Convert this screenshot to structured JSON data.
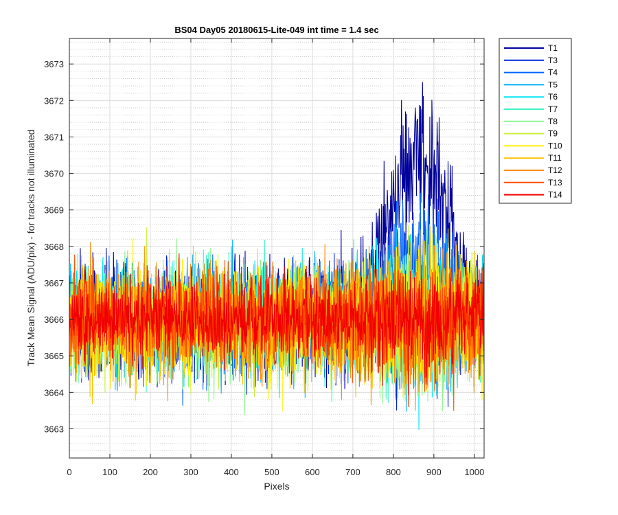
{
  "chart_data": {
    "type": "line",
    "title": "BS04 Day05 20180615-Lite-049 int time = 1.4 sec",
    "xlabel": "Pixels",
    "ylabel": "Track Mean Signal (ADU/pix) - for tracks not illuminated",
    "xlim": [
      0,
      1024
    ],
    "ylim": [
      3662.2,
      3673.7
    ],
    "xticks": [
      0,
      100,
      200,
      300,
      400,
      500,
      600,
      700,
      800,
      900,
      1000
    ],
    "yticks": [
      3663,
      3664,
      3665,
      3666,
      3667,
      3668,
      3669,
      3670,
      3671,
      3672,
      3673
    ],
    "grid": true,
    "minor_grid": true,
    "legend_position": "outside-right",
    "series": [
      {
        "name": "T1",
        "color": "#00009C",
        "baseline": 3666.0,
        "noise": 1.1,
        "bump": 4.7,
        "bump_center": 860,
        "bump_width": 100
      },
      {
        "name": "T3",
        "color": "#0026D9",
        "baseline": 3666.0,
        "noise": 1.0,
        "bump": 0.4,
        "bump_center": 860,
        "bump_width": 110
      },
      {
        "name": "T4",
        "color": "#0066FF",
        "baseline": 3666.0,
        "noise": 1.0,
        "bump": 1.7,
        "bump_center": 860,
        "bump_width": 100
      },
      {
        "name": "T5",
        "color": "#00B0FF",
        "baseline": 3666.0,
        "noise": 1.0,
        "bump": 0.0,
        "bump_center": 860,
        "bump_width": 100
      },
      {
        "name": "T6",
        "color": "#00E5F0",
        "baseline": 3666.0,
        "noise": 1.0,
        "bump": 0.0,
        "bump_center": 860,
        "bump_width": 100
      },
      {
        "name": "T7",
        "color": "#3CF3C8",
        "baseline": 3666.0,
        "noise": 1.0,
        "bump": 0.0,
        "bump_center": 860,
        "bump_width": 100
      },
      {
        "name": "T8",
        "color": "#8CF58E",
        "baseline": 3665.9,
        "noise": 1.05,
        "bump": 0.0,
        "bump_center": 860,
        "bump_width": 100
      },
      {
        "name": "T9",
        "color": "#C9F23C",
        "baseline": 3665.9,
        "noise": 1.0,
        "bump": 0.0,
        "bump_center": 860,
        "bump_width": 100
      },
      {
        "name": "T10",
        "color": "#FFF200",
        "baseline": 3665.9,
        "noise": 1.0,
        "bump": 0.0,
        "bump_center": 860,
        "bump_width": 100
      },
      {
        "name": "T11",
        "color": "#FFC400",
        "baseline": 3665.9,
        "noise": 1.0,
        "bump": 0.0,
        "bump_center": 860,
        "bump_width": 100
      },
      {
        "name": "T12",
        "color": "#FF8C00",
        "baseline": 3666.0,
        "noise": 1.0,
        "bump": 0.0,
        "bump_center": 860,
        "bump_width": 100
      },
      {
        "name": "T13",
        "color": "#FF4A00",
        "baseline": 3666.0,
        "noise": 0.9,
        "bump": 0.0,
        "bump_center": 860,
        "bump_width": 100
      },
      {
        "name": "T14",
        "color": "#F00000",
        "baseline": 3666.0,
        "noise": 0.8,
        "bump": 0.0,
        "bump_center": 860,
        "bump_width": 100
      }
    ]
  }
}
